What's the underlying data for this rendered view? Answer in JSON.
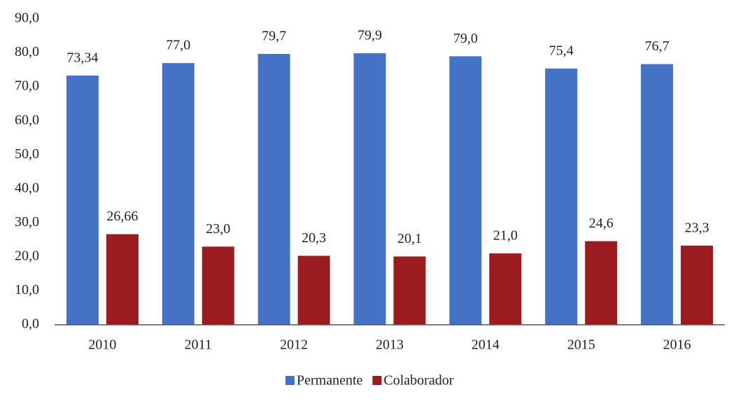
{
  "chart_data": {
    "type": "bar",
    "categories": [
      "2010",
      "2011",
      "2012",
      "2013",
      "2014",
      "2015",
      "2016"
    ],
    "series": [
      {
        "name": "Permanente",
        "color": "#4472c4",
        "values": [
          73.34,
          77.0,
          79.7,
          79.9,
          79.0,
          75.4,
          76.7
        ],
        "value_labels": [
          "73,34",
          "77,0",
          "79,7",
          "79,9",
          "79,0",
          "75,4",
          "76,7"
        ]
      },
      {
        "name": "Colaborador",
        "color": "#9b1b1e",
        "values": [
          26.66,
          23.0,
          20.3,
          20.1,
          21.0,
          24.6,
          23.3
        ],
        "value_labels": [
          "26,66",
          "23,0",
          "20,3",
          "20,1",
          "21,0",
          "24,6",
          "23,3"
        ]
      }
    ],
    "ylim": [
      0,
      90
    ],
    "yticks": [
      {
        "value": 0,
        "label": "0,0"
      },
      {
        "value": 10,
        "label": "10,0"
      },
      {
        "value": 20,
        "label": "20,0"
      },
      {
        "value": 30,
        "label": "30,0"
      },
      {
        "value": 40,
        "label": "40,0"
      },
      {
        "value": 50,
        "label": "50,0"
      },
      {
        "value": 60,
        "label": "60,0"
      },
      {
        "value": 70,
        "label": "70,0"
      },
      {
        "value": 80,
        "label": "80,0"
      },
      {
        "value": 90,
        "label": "90,0"
      }
    ],
    "grid": false,
    "legend": "bottom"
  }
}
